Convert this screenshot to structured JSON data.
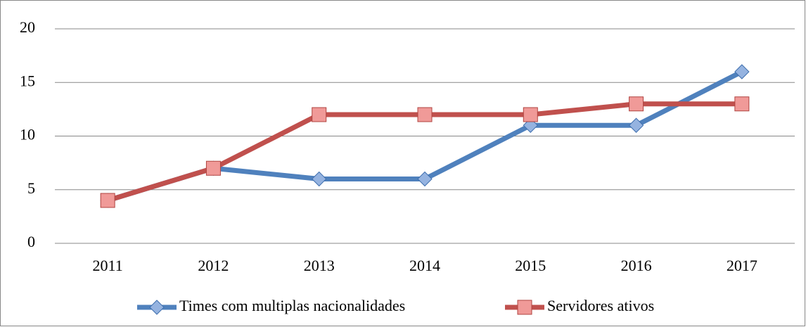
{
  "chart_data": {
    "type": "line",
    "categories": [
      "2011",
      "2012",
      "2013",
      "2014",
      "2015",
      "2016",
      "2017"
    ],
    "series": [
      {
        "name": "Times com multiplas nacionalidades",
        "color": "#4f81bd",
        "values": [
          4,
          7,
          6,
          6,
          11,
          11,
          16
        ]
      },
      {
        "name": "Servidores ativos",
        "color": "#c0504d",
        "values": [
          4,
          7,
          12,
          12,
          12,
          13,
          13
        ]
      }
    ],
    "ylim": [
      0,
      20
    ],
    "yticks": [
      0,
      5,
      10,
      15,
      20
    ],
    "grid": true,
    "legend": "bottom"
  }
}
